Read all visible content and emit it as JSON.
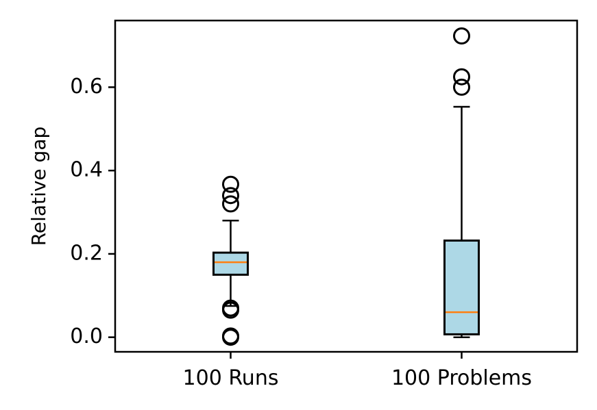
{
  "chart_data": {
    "type": "box",
    "title": "",
    "xlabel": "",
    "ylabel": "Relative gap",
    "ylim": [
      -0.035,
      0.76
    ],
    "yticks": [
      0.0,
      0.2,
      0.4,
      0.6
    ],
    "ytick_labels": [
      "0.0",
      "0.2",
      "0.4",
      "0.6"
    ],
    "grid": false,
    "box_fill": "#add8e6",
    "median_color": "#ff7f0e",
    "categories": [
      "100 Runs",
      "100 Problems"
    ],
    "boxes": [
      {
        "label": "100 Runs",
        "whisker_low": 0.075,
        "q1": 0.15,
        "median": 0.18,
        "q3": 0.203,
        "whisker_high": 0.28,
        "outliers": [
          0.0,
          0.003,
          0.065,
          0.07,
          0.32,
          0.34,
          0.367
        ]
      },
      {
        "label": "100 Problems",
        "whisker_low": 0.0,
        "q1": 0.007,
        "median": 0.06,
        "q3": 0.232,
        "whisker_high": 0.553,
        "outliers": [
          0.6,
          0.625,
          0.723
        ]
      }
    ]
  }
}
